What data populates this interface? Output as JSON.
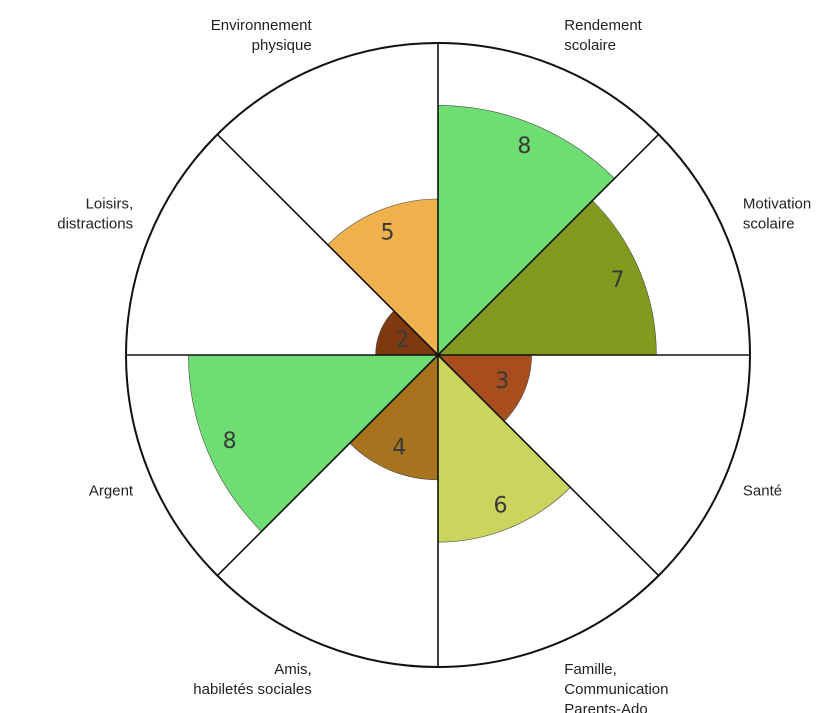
{
  "chart_data": {
    "type": "polar-area",
    "title": "",
    "max_value": 10,
    "categories": [
      "Rendement scolaire",
      "Motivation scolaire",
      "Santé",
      "Famille, Communication Parents-Ado",
      "Amis, habiletés sociales",
      "Argent",
      "Loisirs, distractions",
      "Environnement physique"
    ],
    "category_lines": [
      [
        "Rendement",
        "scolaire"
      ],
      [
        "Motivation",
        "scolaire"
      ],
      [
        "Santé"
      ],
      [
        "Famille,",
        "Communication",
        "Parents-Ado"
      ],
      [
        "Amis,",
        "habiletés sociales"
      ],
      [
        "Argent"
      ],
      [
        "Loisirs,",
        "distractions"
      ],
      [
        "Environnement",
        "physique"
      ]
    ],
    "values": [
      8,
      7,
      3,
      6,
      4,
      8,
      2,
      5
    ],
    "value_labels": [
      "8",
      "7",
      "3",
      "6",
      "4",
      "8",
      "2",
      "5"
    ],
    "colors": [
      "#6ede72",
      "#809b1e",
      "#a84e1e",
      "#cbd45c",
      "#a8731e",
      "#6ede72",
      "#7e3a0e",
      "#efb14c"
    ]
  }
}
